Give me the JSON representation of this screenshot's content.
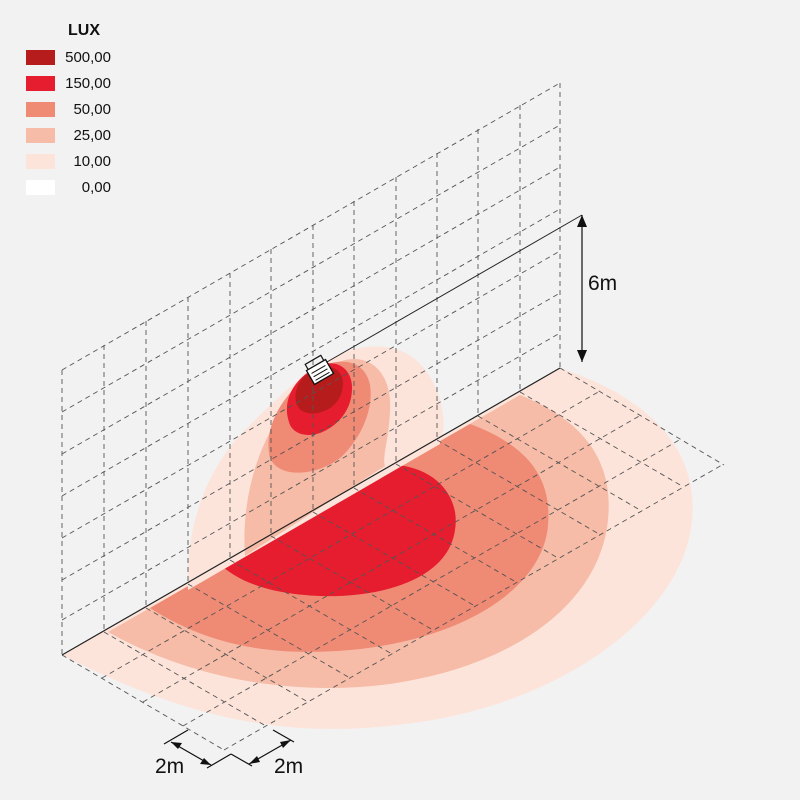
{
  "legend": {
    "title": "LUX",
    "items": [
      {
        "value": "500,00",
        "color": "#b71c1c"
      },
      {
        "value": "150,00",
        "color": "#e51d2e"
      },
      {
        "value": "50,00",
        "color": "#ef8a75"
      },
      {
        "value": "25,00",
        "color": "#f6bca8"
      },
      {
        "value": "10,00",
        "color": "#fde4db"
      },
      {
        "value": "0,00",
        "color": "#ffffff"
      }
    ]
  },
  "dimensions": {
    "height_label": "6m",
    "grid_x_label": "2m",
    "grid_y_label": "2m"
  }
}
